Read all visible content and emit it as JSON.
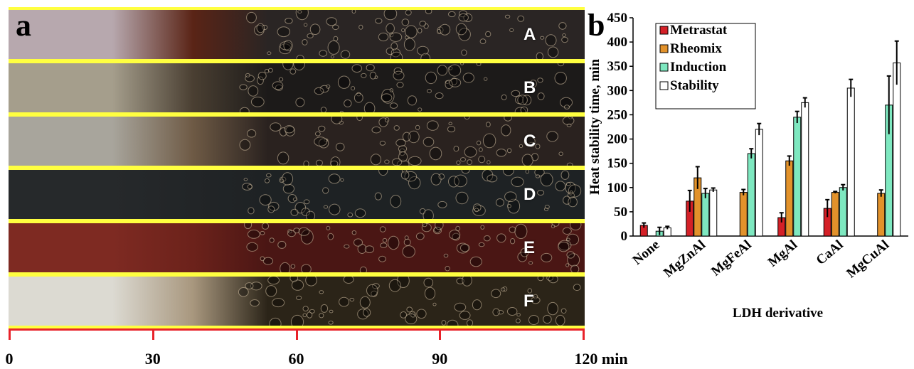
{
  "panel_a": {
    "letter": "a",
    "strips": [
      {
        "label": "A",
        "base": "#2a2524",
        "left_color": "#b7a8ae",
        "mid_color": "#5a2416"
      },
      {
        "label": "B",
        "base": "#1c1a19",
        "left_color": "#a59e8c",
        "mid_color": "#4a3f32"
      },
      {
        "label": "C",
        "base": "#2a221f",
        "left_color": "#a8a59c",
        "mid_color": "#6e5a45"
      },
      {
        "label": "D",
        "base": "#1e2224",
        "left_color": "#26292b",
        "mid_color": "#222527"
      },
      {
        "label": "E",
        "base": "#4a1614",
        "left_color": "#7e2a22",
        "mid_color": "#6c221b"
      },
      {
        "label": "F",
        "base": "#2b2418",
        "left_color": "#dcdad2",
        "mid_color": "#a8977e"
      }
    ],
    "timeline": {
      "ticks": [
        "0",
        "30",
        "60",
        "90",
        "120 min"
      ],
      "color": "#e8222a"
    }
  },
  "chart_data": {
    "panel_letter": "b",
    "type": "bar",
    "ylabel": "Heat  stability time, min",
    "xlabel": "LDH derivative",
    "ylim": [
      0,
      450
    ],
    "yticks": [
      0,
      50,
      100,
      150,
      200,
      250,
      300,
      350,
      400,
      450
    ],
    "categories": [
      "None",
      "MgZnAl",
      "MgFeAl",
      "MgAl",
      "CaAl",
      "MgCuAl"
    ],
    "series": [
      {
        "name": "Metrastat",
        "color": "#d42027",
        "values": [
          22,
          72,
          null,
          38,
          57,
          null
        ],
        "errors": [
          5,
          22,
          null,
          10,
          18,
          null
        ]
      },
      {
        "name": "Rheomix",
        "color": "#e2922b",
        "values": [
          null,
          120,
          90,
          null,
          90,
          88
        ],
        "errors": [
          null,
          23,
          6,
          null,
          null,
          7
        ],
        "values_full": [
          null,
          120,
          90,
          155,
          90,
          88
        ],
        "errors_full": [
          null,
          23,
          6,
          10,
          2,
          7
        ]
      },
      {
        "name": "Induction",
        "color": "#7ee8c0",
        "values": [
          10,
          88,
          170,
          245,
          100,
          270
        ],
        "errors": [
          8,
          10,
          10,
          12,
          6,
          60
        ]
      },
      {
        "name": "Stability",
        "color": "#ffffff",
        "values": [
          17,
          95,
          220,
          275,
          305,
          357
        ],
        "errors": [
          3,
          4,
          12,
          10,
          18,
          45
        ]
      }
    ],
    "legend_position": "top-left",
    "grid": false
  }
}
